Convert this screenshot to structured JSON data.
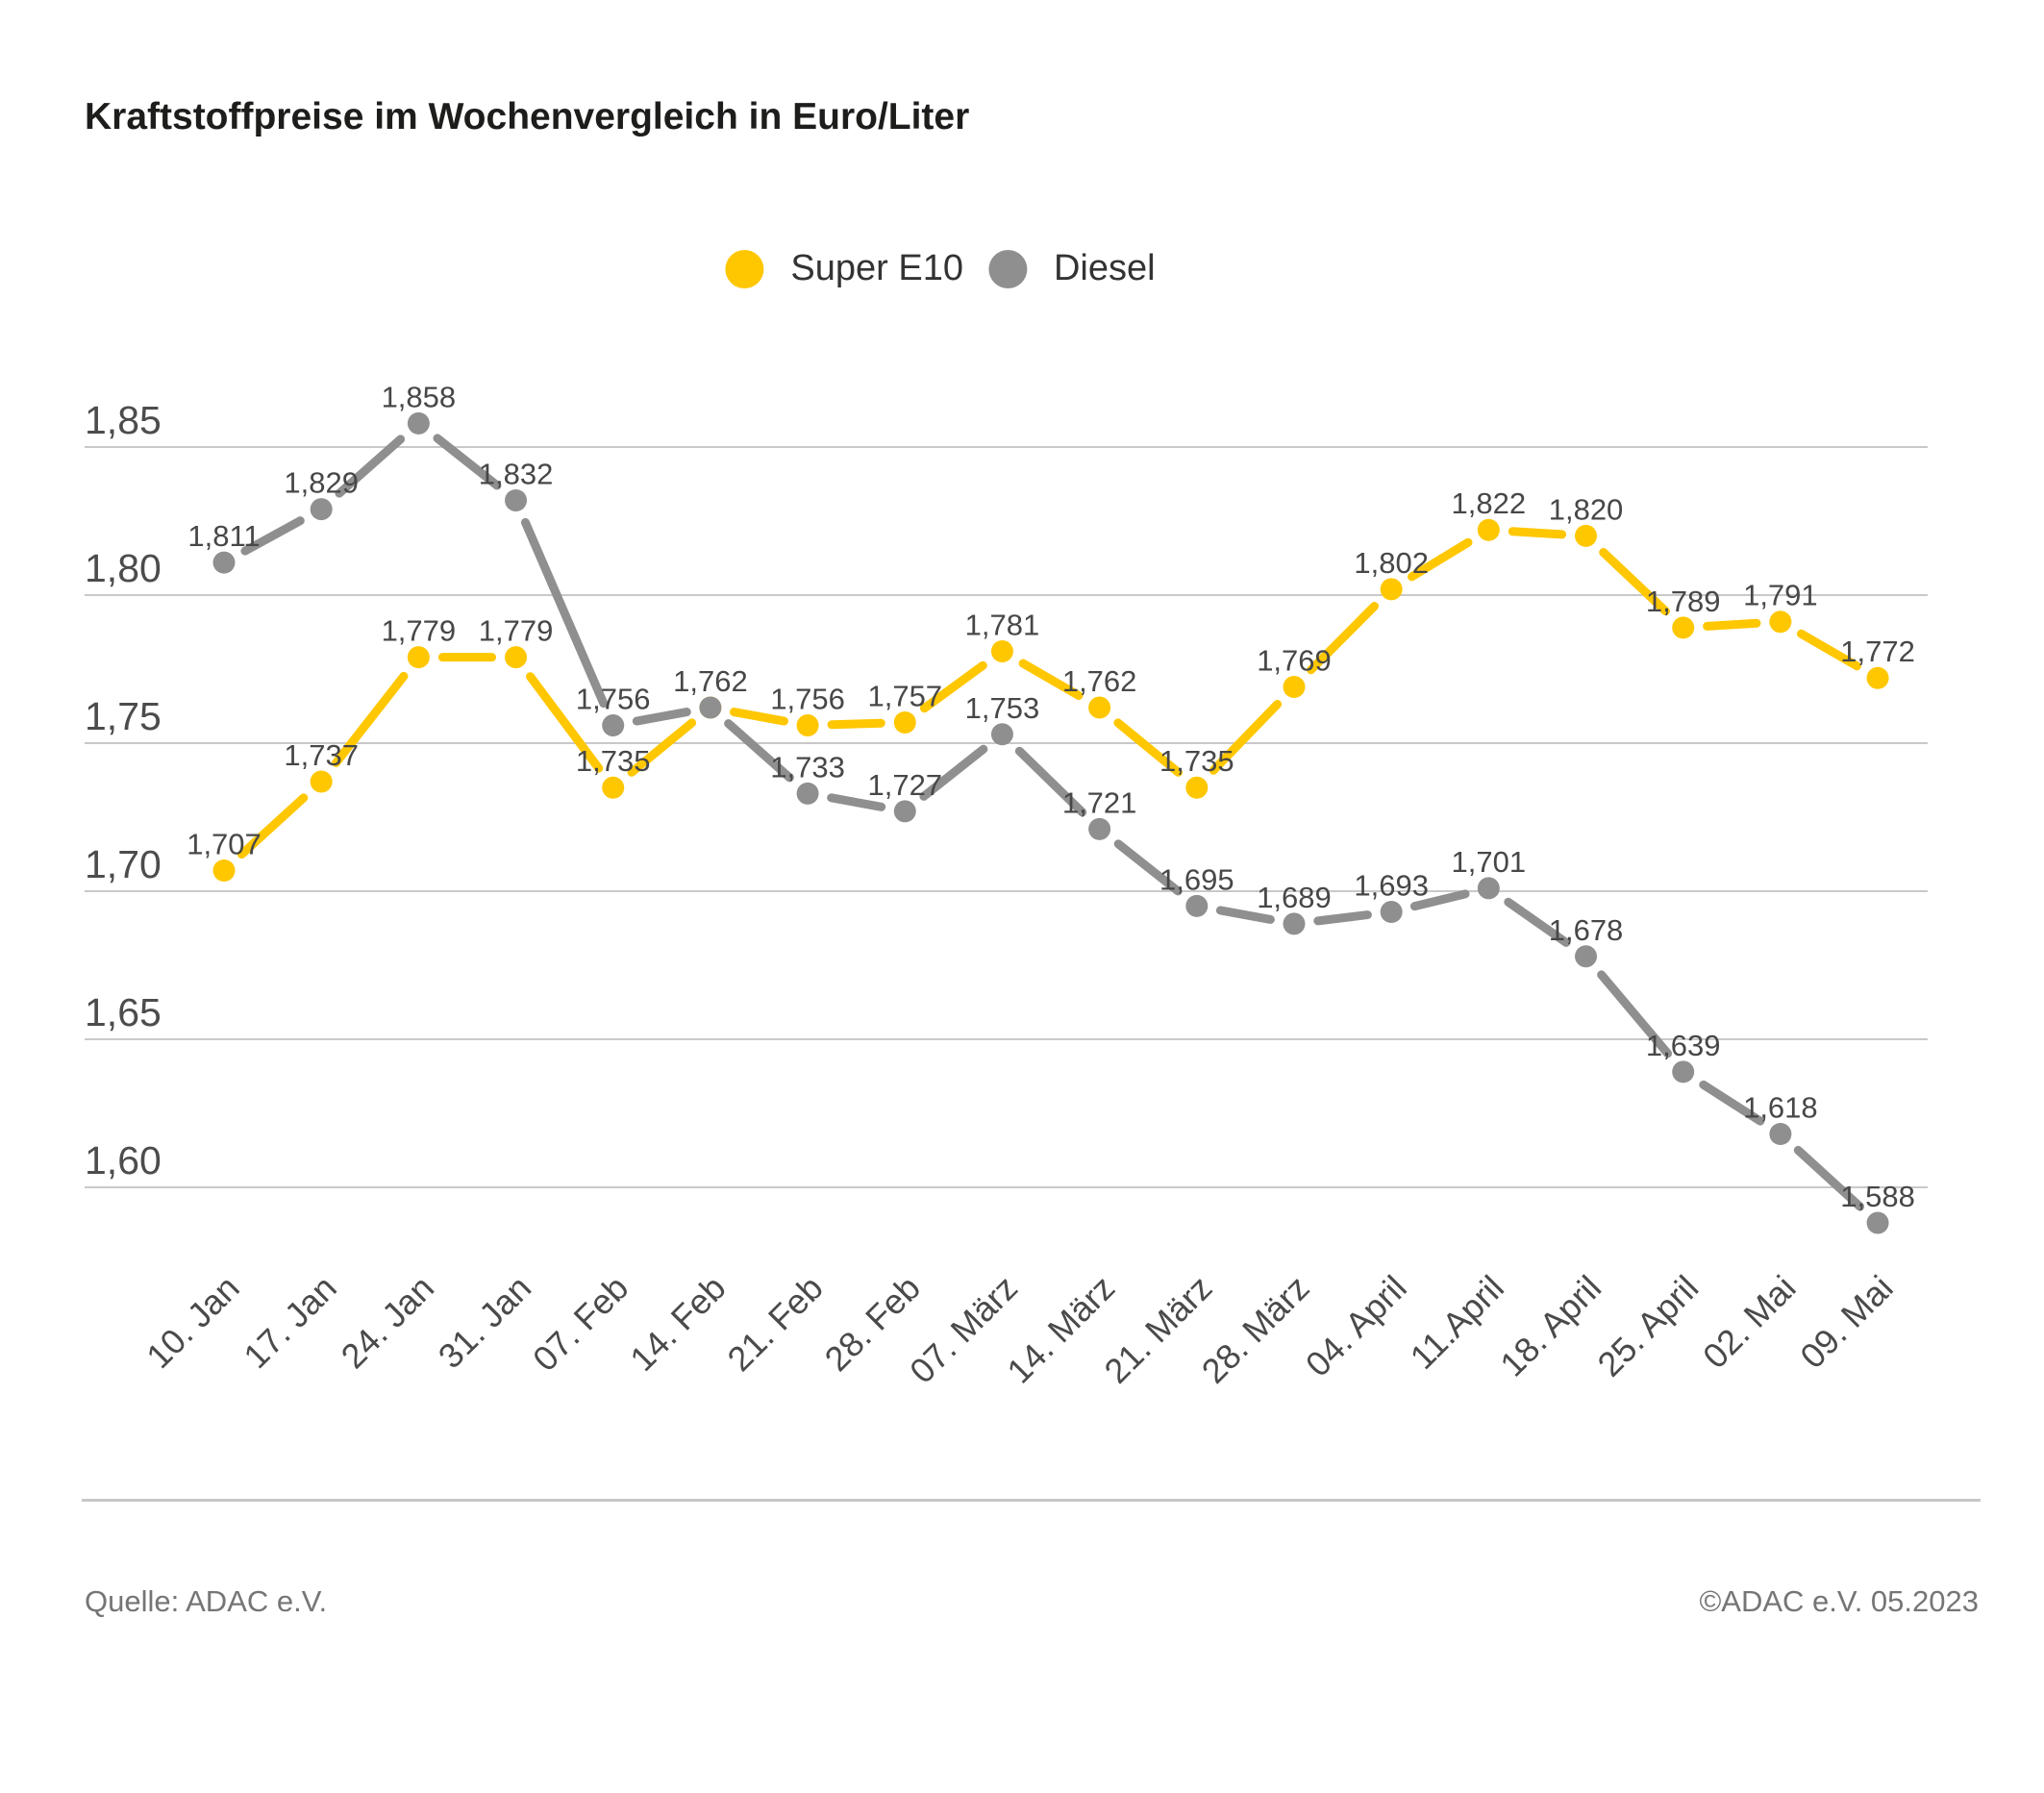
{
  "title": "Kraftstoffpreise im Wochenvergleich in Euro/Liter",
  "footer": {
    "source": "Quelle: ADAC e.V.",
    "copyright": "©ADAC e.V. 05.2023"
  },
  "chart_data": {
    "type": "line",
    "title": "Kraftstoffpreise im Wochenvergleich in Euro/Liter",
    "categories": [
      "10. Jan",
      "17. Jan",
      "24. Jan",
      "31. Jan",
      "07. Feb",
      "14. Feb",
      "21. Feb",
      "28. Feb",
      "07. März",
      "14. März",
      "21. März",
      "28. März",
      "04. April",
      "11.April",
      "18. April",
      "25. April",
      "02. Mai",
      "09. Mai"
    ],
    "series": [
      {
        "name": "Super E10",
        "color": "#FFC700",
        "values": [
          1.707,
          1.737,
          1.779,
          1.779,
          1.735,
          1.762,
          1.756,
          1.757,
          1.781,
          1.762,
          1.735,
          1.769,
          1.802,
          1.822,
          1.82,
          1.789,
          1.791,
          1.772
        ],
        "labels": [
          "1,707",
          "1,737",
          "1,779",
          "1,779",
          "1,735",
          "",
          "1,756",
          "1,757",
          "1,781",
          "1,762",
          "1,735",
          "1,769",
          "1,802",
          "1,822",
          "1,820",
          "1,789",
          "1,791",
          "1,772"
        ]
      },
      {
        "name": "Diesel",
        "color": "#8f8f8f",
        "values": [
          1.811,
          1.829,
          1.858,
          1.832,
          1.756,
          1.762,
          1.733,
          1.727,
          1.753,
          1.721,
          1.695,
          1.689,
          1.693,
          1.701,
          1.678,
          1.639,
          1.618,
          1.588
        ],
        "labels": [
          "1,811",
          "1,829",
          "1,858",
          "1,832",
          "1,756",
          "1,762",
          "1,733",
          "1,727",
          "1,753",
          "1,721",
          "1,695",
          "1,689",
          "1,693",
          "1,701",
          "1,678",
          "1,639",
          "1,618",
          "1,588"
        ]
      }
    ],
    "y_ticks": [
      {
        "label": "1,85",
        "value": 1.85
      },
      {
        "label": "1,80",
        "value": 1.8
      },
      {
        "label": "1,75",
        "value": 1.75
      },
      {
        "label": "1,70",
        "value": 1.7
      },
      {
        "label": "1,65",
        "value": 1.65
      },
      {
        "label": "1,60",
        "value": 1.6
      }
    ],
    "ylim": [
      1.575,
      1.875
    ],
    "grid": true,
    "legend_position": "top-center",
    "ylabel": "Euro/Liter"
  }
}
